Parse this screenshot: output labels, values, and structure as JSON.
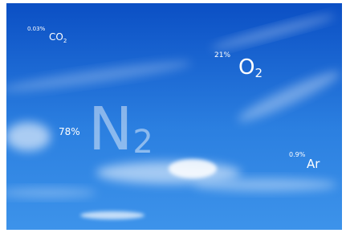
{
  "gases": [
    {
      "percent": "0.03%",
      "symbol": "CO",
      "subscript": "2"
    },
    {
      "percent": "21%",
      "symbol": "O",
      "subscript": "2"
    },
    {
      "percent": "78%",
      "symbol": "N",
      "subscript": "2"
    },
    {
      "percent": "0.9%",
      "symbol": "Ar"
    }
  ]
}
